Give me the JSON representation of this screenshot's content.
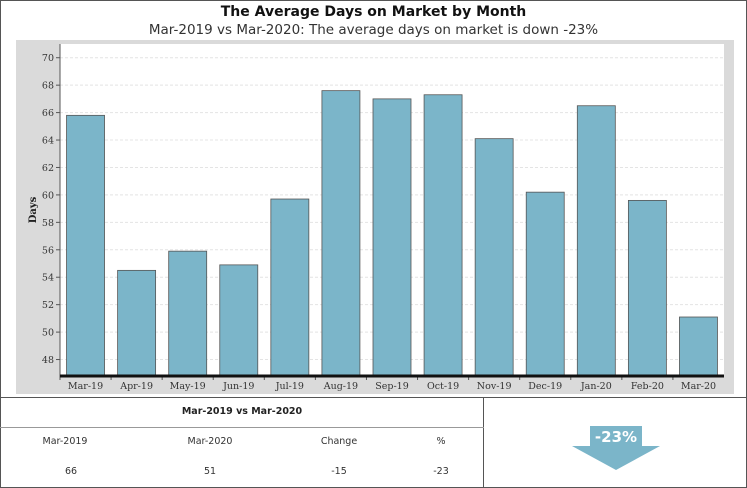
{
  "title": "The Average Days on Market by Month",
  "subtitle": "Mar-2019 vs Mar-2020: The average days on market is down -23%",
  "chart_data": {
    "type": "bar",
    "title": "The Average Days on Market by Month",
    "subtitle": "Mar-2019 vs Mar-2020: The average days on market is down -23%",
    "ylabel": "Days",
    "xlabel": "",
    "categories": [
      "Mar-19",
      "Apr-19",
      "May-19",
      "Jun-19",
      "Jul-19",
      "Aug-19",
      "Sep-19",
      "Oct-19",
      "Nov-19",
      "Dec-19",
      "Jan-20",
      "Feb-20",
      "Mar-20"
    ],
    "values": [
      65.8,
      54.5,
      55.9,
      54.9,
      59.7,
      67.6,
      67.0,
      67.3,
      64.1,
      60.2,
      66.5,
      59.6,
      51.1
    ],
    "yticks": [
      "48",
      "50",
      "52",
      "54",
      "56",
      "58",
      "60",
      "62",
      "64",
      "66",
      "68",
      "70"
    ],
    "ylim": [
      46.8,
      71
    ],
    "grid": true,
    "bar_color": "#7bb5c9",
    "bar_edge_color": "#555555",
    "background_color": "#dadada"
  },
  "summary": {
    "title": "Mar-2019 vs Mar-2020",
    "headers": [
      "Mar-2019",
      "Mar-2020",
      "Change",
      "%"
    ],
    "values": [
      "66",
      "51",
      "-15",
      "-23"
    ],
    "badge": "-23%",
    "badge_color": "#7bb5c9",
    "badge_icon": "down-arrow-icon"
  }
}
